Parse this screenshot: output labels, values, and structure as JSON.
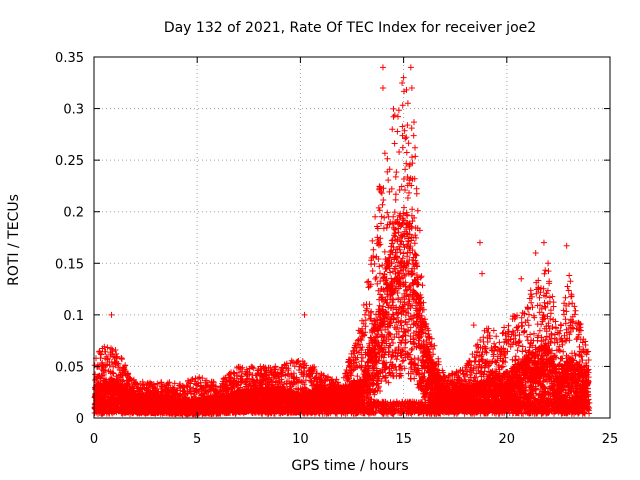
{
  "chart_data": {
    "type": "scatter",
    "title": "Day 132 of 2021, Rate Of TEC Index for receiver joe2",
    "xlabel": "GPS time / hours",
    "ylabel": "ROTI / TECUs",
    "xlim": [
      0,
      25
    ],
    "ylim": [
      0,
      0.35
    ],
    "xticks": [
      0,
      5,
      10,
      15,
      20,
      25
    ],
    "yticks": [
      0,
      0.05,
      0.1,
      0.15,
      0.2,
      0.25,
      0.3,
      0.35
    ],
    "xtick_labels": [
      "0",
      "5",
      "10",
      "15",
      "20",
      "25"
    ],
    "ytick_labels": [
      "0",
      "0.05",
      "0.1",
      "0.15",
      "0.2",
      "0.25",
      "0.3",
      "0.35"
    ],
    "grid": true,
    "marker": "+",
    "color": "#ff0000",
    "series": [
      {
        "name": "ROTI",
        "profile_hours": [
          0,
          0.5,
          1,
          2,
          3,
          4,
          5,
          6,
          7,
          8,
          9,
          10,
          11,
          12,
          13,
          13.5,
          14,
          14.5,
          15,
          15.5,
          16,
          17,
          18,
          19,
          20,
          21,
          22,
          22.5,
          23,
          24
        ],
        "profile_typical": [
          0.02,
          0.025,
          0.025,
          0.015,
          0.015,
          0.012,
          0.012,
          0.013,
          0.018,
          0.02,
          0.02,
          0.015,
          0.02,
          0.02,
          0.025,
          0.06,
          0.09,
          0.12,
          0.14,
          0.12,
          0.05,
          0.02,
          0.02,
          0.025,
          0.03,
          0.04,
          0.05,
          0.025,
          0.04,
          0.03
        ],
        "profile_max": [
          0.06,
          0.07,
          0.07,
          0.035,
          0.035,
          0.035,
          0.04,
          0.035,
          0.05,
          0.05,
          0.05,
          0.06,
          0.045,
          0.035,
          0.1,
          0.18,
          0.25,
          0.3,
          0.33,
          0.3,
          0.1,
          0.04,
          0.05,
          0.09,
          0.09,
          0.12,
          0.15,
          0.08,
          0.14,
          0.06
        ],
        "outliers": [
          {
            "x": 0.85,
            "y": 0.1
          },
          {
            "x": 10.2,
            "y": 0.1
          },
          {
            "x": 14.0,
            "y": 0.34
          },
          {
            "x": 14.0,
            "y": 0.32
          },
          {
            "x": 15.35,
            "y": 0.34
          },
          {
            "x": 15.0,
            "y": 0.33
          },
          {
            "x": 15.4,
            "y": 0.32
          },
          {
            "x": 14.45,
            "y": 0.28
          },
          {
            "x": 18.7,
            "y": 0.17
          },
          {
            "x": 18.8,
            "y": 0.14
          },
          {
            "x": 21.8,
            "y": 0.17
          },
          {
            "x": 22.9,
            "y": 0.167
          },
          {
            "x": 21.4,
            "y": 0.16
          },
          {
            "x": 22.0,
            "y": 0.15
          },
          {
            "x": 20.7,
            "y": 0.135
          },
          {
            "x": 18.4,
            "y": 0.09
          },
          {
            "x": 16.2,
            "y": 0.085
          }
        ]
      }
    ]
  }
}
